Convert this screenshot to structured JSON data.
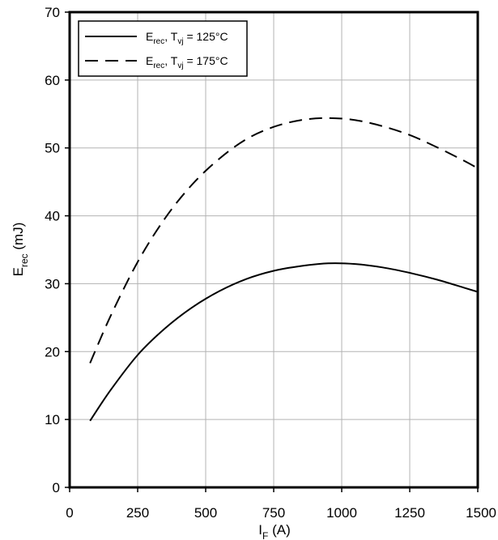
{
  "chart_data": {
    "type": "line",
    "xlabel": "I_F (A)",
    "xlabel_main": "I",
    "xlabel_sub": "F",
    "xlabel_unit": " (A)",
    "ylabel": "E_rec (mJ)",
    "ylabel_main": "E",
    "ylabel_sub": "rec",
    "ylabel_unit": " (mJ)",
    "xlim": [
      0,
      1500
    ],
    "ylim": [
      0,
      70
    ],
    "xticks": [
      0,
      250,
      500,
      750,
      1000,
      1250,
      1500
    ],
    "yticks": [
      0,
      10,
      20,
      30,
      40,
      50,
      60,
      70
    ],
    "grid": true,
    "legend_position": "top-left",
    "series": [
      {
        "name": "E_rec, T_vj = 125°C",
        "legend": {
          "a": "E",
          "a_sub": "rec",
          "b": ", T",
          "b_sub": "vj",
          "c": " = 125°C"
        },
        "dash": "solid",
        "x": [
          75,
          150,
          250,
          350,
          450,
          550,
          650,
          750,
          850,
          950,
          1050,
          1150,
          1250,
          1350,
          1450,
          1500
        ],
        "y": [
          9.8,
          14.3,
          19.5,
          23.4,
          26.5,
          28.9,
          30.7,
          31.9,
          32.6,
          33.0,
          32.9,
          32.4,
          31.6,
          30.6,
          29.4,
          28.8
        ]
      },
      {
        "name": "E_rec, T_vj = 175°C",
        "legend": {
          "a": "E",
          "a_sub": "rec",
          "b": ", T",
          "b_sub": "vj",
          "c": " = 175°C"
        },
        "dash": "dashed",
        "x": [
          75,
          150,
          250,
          350,
          450,
          550,
          650,
          750,
          850,
          950,
          1050,
          1150,
          1250,
          1350,
          1450,
          1500
        ],
        "y": [
          18.3,
          25.2,
          33.2,
          39.6,
          44.6,
          48.4,
          51.3,
          53.1,
          54.1,
          54.4,
          54.1,
          53.2,
          51.9,
          50.1,
          48.1,
          47.0
        ]
      }
    ]
  }
}
